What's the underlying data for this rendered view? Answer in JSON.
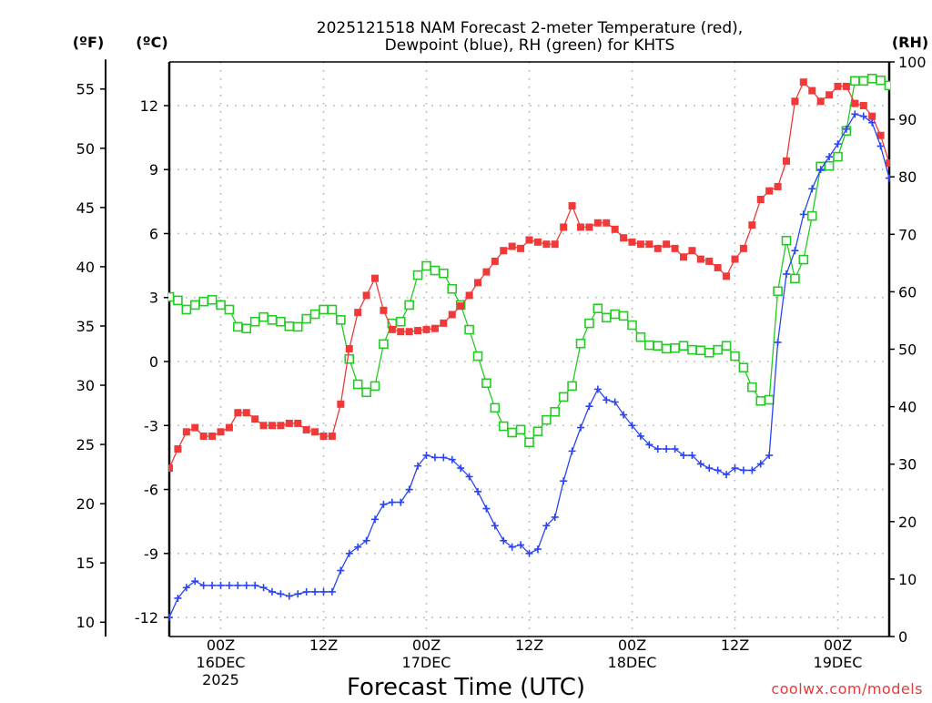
{
  "chart_data": {
    "type": "line",
    "title": [
      "2025121518 NAM Forecast 2-meter Temperature (red),",
      "Dewpoint (blue), RH (green) for KHTS"
    ],
    "xlabel": "Forecast Time (UTC)",
    "credit": "coolwx.com/models",
    "units": {
      "f": "(ºF)",
      "c": "(ºC)",
      "rh": "(RH)"
    },
    "x_hours_from_start": {
      "start": "18Z 15DEC 2025",
      "step_hours": 1,
      "count": 85
    },
    "xlim_hours": [
      0,
      84
    ],
    "x_ticks": [
      {
        "hour": 6,
        "lines": [
          "00Z",
          "16DEC",
          "2025"
        ]
      },
      {
        "hour": 18,
        "lines": [
          "12Z"
        ]
      },
      {
        "hour": 30,
        "lines": [
          "00Z",
          "17DEC"
        ]
      },
      {
        "hour": 42,
        "lines": [
          "12Z"
        ]
      },
      {
        "hour": 54,
        "lines": [
          "00Z",
          "18DEC"
        ]
      },
      {
        "hour": 66,
        "lines": [
          "12Z"
        ]
      },
      {
        "hour": 78,
        "lines": [
          "00Z",
          "19DEC"
        ]
      }
    ],
    "ylim_c": [
      -12.9,
      14.05
    ],
    "y_ticks_c": [
      -12,
      -9,
      -6,
      -3,
      0,
      3,
      6,
      9,
      12
    ],
    "y_ticks_f": [
      10,
      15,
      20,
      25,
      30,
      35,
      40,
      45,
      50,
      55
    ],
    "ylim_rh": [
      0,
      100
    ],
    "y_ticks_rh": [
      0,
      10,
      20,
      30,
      40,
      50,
      60,
      70,
      80,
      90,
      100
    ],
    "grid": true,
    "colors": {
      "temperature": "#f03a3a",
      "dewpoint": "#2a44f5",
      "rh": "#22cc22"
    },
    "series": [
      {
        "name": "Temperature (C)",
        "axis": "c",
        "marker": "filled-square",
        "values": [
          -5.0,
          -4.1,
          -3.3,
          -3.1,
          -3.5,
          -3.5,
          -3.3,
          -3.1,
          -2.4,
          -2.4,
          -2.7,
          -3.0,
          -3.0,
          -3.0,
          -2.9,
          -2.9,
          -3.2,
          -3.3,
          -3.5,
          -3.5,
          -2.0,
          0.6,
          2.3,
          3.1,
          3.9,
          2.4,
          1.5,
          1.4,
          1.4,
          1.45,
          1.5,
          1.55,
          1.8,
          2.2,
          2.6,
          3.1,
          3.7,
          4.2,
          4.7,
          5.2,
          5.4,
          5.3,
          5.7,
          5.6,
          5.5,
          5.5,
          6.3,
          7.3,
          6.3,
          6.3,
          6.5,
          6.5,
          6.2,
          5.8,
          5.6,
          5.5,
          5.5,
          5.3,
          5.5,
          5.3,
          4.9,
          5.2,
          4.8,
          4.7,
          4.4,
          4.0,
          4.8,
          5.3,
          6.4,
          7.6,
          8.0,
          8.2,
          9.4,
          12.2,
          13.1,
          12.7,
          12.2,
          12.5,
          12.9,
          12.9,
          12.1,
          12.0,
          11.5,
          10.6,
          9.3
        ]
      },
      {
        "name": "Dewpoint (C)",
        "axis": "c",
        "marker": "plus",
        "values": [
          -12.0,
          -11.1,
          -10.6,
          -10.3,
          -10.5,
          -10.5,
          -10.5,
          -10.5,
          -10.5,
          -10.5,
          -10.5,
          -10.6,
          -10.8,
          -10.9,
          -11.0,
          -10.9,
          -10.8,
          -10.8,
          -10.8,
          -10.8,
          -9.8,
          -9.0,
          -8.7,
          -8.4,
          -7.4,
          -6.7,
          -6.6,
          -6.6,
          -6.0,
          -4.9,
          -4.4,
          -4.5,
          -4.5,
          -4.6,
          -5.0,
          -5.4,
          -6.1,
          -6.9,
          -7.7,
          -8.4,
          -8.7,
          -8.6,
          -9.0,
          -8.8,
          -7.7,
          -7.3,
          -5.6,
          -4.2,
          -3.1,
          -2.1,
          -1.3,
          -1.8,
          -1.9,
          -2.5,
          -3.0,
          -3.5,
          -3.9,
          -4.1,
          -4.1,
          -4.1,
          -4.4,
          -4.4,
          -4.8,
          -5.0,
          -5.1,
          -5.3,
          -5.0,
          -5.1,
          -5.1,
          -4.8,
          -4.4,
          0.9,
          4.1,
          5.2,
          6.9,
          8.1,
          9.0,
          9.6,
          10.2,
          10.9,
          11.6,
          11.5,
          11.2,
          10.1,
          8.6
        ]
      },
      {
        "name": "RH (%)",
        "axis": "rh",
        "marker": "open-square",
        "values": [
          59.1,
          58.5,
          56.9,
          57.7,
          58.3,
          58.6,
          57.7,
          56.9,
          53.9,
          53.6,
          54.8,
          55.6,
          55.1,
          54.8,
          54.0,
          53.9,
          55.3,
          56.1,
          56.9,
          56.9,
          55.1,
          48.3,
          43.9,
          42.5,
          43.6,
          50.9,
          54.5,
          54.8,
          57.7,
          62.9,
          64.5,
          63.7,
          63.2,
          60.5,
          57.7,
          53.4,
          48.8,
          44.1,
          39.8,
          36.6,
          35.5,
          36.0,
          33.8,
          35.7,
          37.7,
          39.1,
          41.7,
          43.6,
          51.0,
          54.5,
          57.1,
          55.5,
          56.1,
          55.8,
          54.2,
          52.1,
          50.7,
          50.6,
          50.1,
          50.2,
          50.6,
          49.9,
          49.8,
          49.4,
          49.9,
          50.6,
          48.8,
          46.8,
          43.4,
          41.0,
          41.2,
          60.1,
          68.9,
          62.3,
          65.6,
          73.2,
          81.8,
          81.9,
          83.5,
          88.0,
          96.7,
          96.7,
          97.1,
          96.8,
          95.9
        ]
      }
    ]
  }
}
